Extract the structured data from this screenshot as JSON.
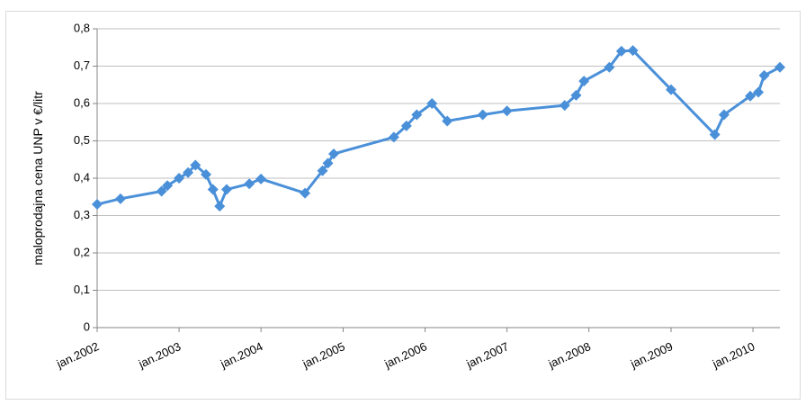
{
  "chart_data": {
    "type": "line",
    "title": "",
    "xlabel": "",
    "ylabel": "maloprodajna cena UNP v €/litr",
    "x_type": "date",
    "xlim": [
      "2002-01-01",
      "2010-05-01"
    ],
    "ylim": [
      0,
      0.8
    ],
    "y_ticks": [
      "0",
      "0,1",
      "0,2",
      "0,3",
      "0,4",
      "0,5",
      "0,6",
      "0,7",
      "0,8"
    ],
    "x_tick_labels": [
      "jan.2002",
      "jan.2003",
      "jan.2004",
      "jan.2005",
      "jan.2006",
      "jan.2007",
      "jan.2008",
      "jan.2009",
      "jan.2010"
    ],
    "x_tick_dates": [
      "2002-01-01",
      "2003-01-01",
      "2004-01-01",
      "2005-01-01",
      "2006-01-01",
      "2007-01-01",
      "2008-01-01",
      "2009-01-01",
      "2010-01-01"
    ],
    "grid": true,
    "legend": "none",
    "marker": "diamond",
    "series": [
      {
        "color": "#4a90d9",
        "points": [
          {
            "x": "2002-01-01",
            "y": 0.33
          },
          {
            "x": "2002-04-15",
            "y": 0.345
          },
          {
            "x": "2002-10-15",
            "y": 0.365
          },
          {
            "x": "2002-11-10",
            "y": 0.38
          },
          {
            "x": "2003-01-01",
            "y": 0.4
          },
          {
            "x": "2003-02-10",
            "y": 0.415
          },
          {
            "x": "2003-03-15",
            "y": 0.435
          },
          {
            "x": "2003-05-01",
            "y": 0.41
          },
          {
            "x": "2003-06-01",
            "y": 0.37
          },
          {
            "x": "2003-07-01",
            "y": 0.325
          },
          {
            "x": "2003-08-01",
            "y": 0.37
          },
          {
            "x": "2003-11-10",
            "y": 0.385
          },
          {
            "x": "2004-01-01",
            "y": 0.398
          },
          {
            "x": "2004-07-15",
            "y": 0.36
          },
          {
            "x": "2004-10-01",
            "y": 0.42
          },
          {
            "x": "2004-10-25",
            "y": 0.44
          },
          {
            "x": "2004-11-20",
            "y": 0.465
          },
          {
            "x": "2005-08-15",
            "y": 0.51
          },
          {
            "x": "2005-10-10",
            "y": 0.54
          },
          {
            "x": "2005-11-25",
            "y": 0.57
          },
          {
            "x": "2006-02-01",
            "y": 0.6
          },
          {
            "x": "2006-04-10",
            "y": 0.553
          },
          {
            "x": "2006-09-15",
            "y": 0.57
          },
          {
            "x": "2007-01-01",
            "y": 0.58
          },
          {
            "x": "2007-09-15",
            "y": 0.595
          },
          {
            "x": "2007-11-05",
            "y": 0.622
          },
          {
            "x": "2007-12-10",
            "y": 0.66
          },
          {
            "x": "2008-04-01",
            "y": 0.697
          },
          {
            "x": "2008-05-25",
            "y": 0.74
          },
          {
            "x": "2008-07-15",
            "y": 0.742
          },
          {
            "x": "2009-01-01",
            "y": 0.637
          },
          {
            "x": "2009-07-15",
            "y": 0.517
          },
          {
            "x": "2009-08-25",
            "y": 0.57
          },
          {
            "x": "2009-12-20",
            "y": 0.62
          },
          {
            "x": "2010-01-25",
            "y": 0.63
          },
          {
            "x": "2010-02-20",
            "y": 0.675
          },
          {
            "x": "2010-05-01",
            "y": 0.697
          }
        ]
      }
    ]
  }
}
